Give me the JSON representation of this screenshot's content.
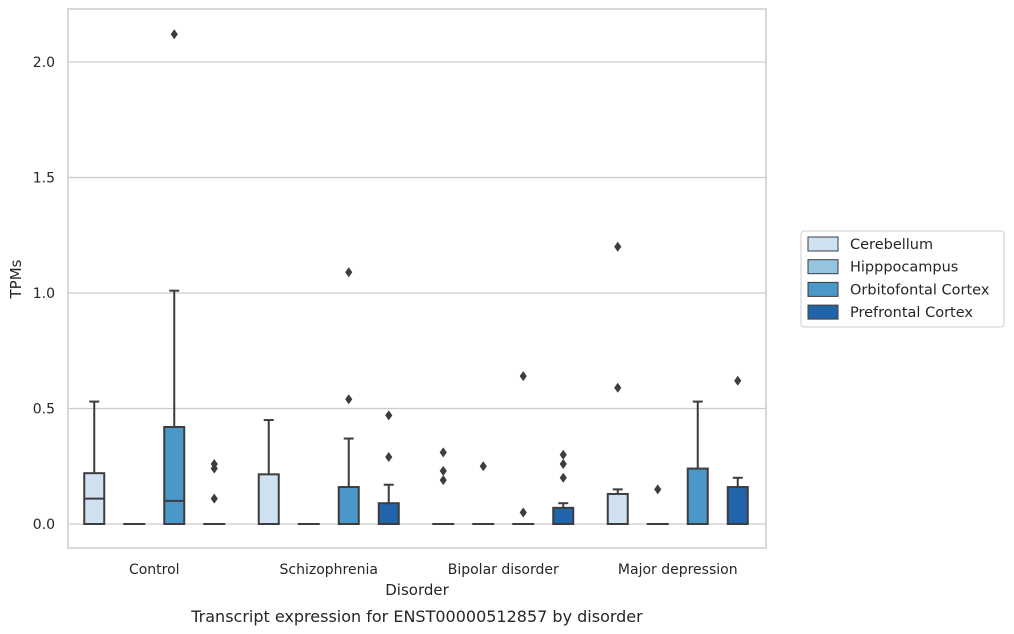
{
  "chart_data": {
    "type": "box",
    "caption": "Transcript expression for ENST00000512857 by disorder",
    "xlabel": "Disorder",
    "ylabel": "TPMs",
    "ylim": [
      -0.1,
      2.23
    ],
    "yticks": [
      0.0,
      0.5,
      1.0,
      1.5,
      2.0
    ],
    "ytick_labels": [
      "0.0",
      "0.5",
      "1.0",
      "1.5",
      "2.0"
    ],
    "grid": "horizontal",
    "legend_position": "right",
    "categories": [
      "Control",
      "Schizophrenia",
      "Bipolar disorder",
      "Major depression"
    ],
    "series": [
      {
        "name": "Cerebellum",
        "color": "#d0e1f2",
        "boxes": [
          {
            "q1": 0.0,
            "median": 0.11,
            "q3": 0.22,
            "whisker_low": 0.0,
            "whisker_high": 0.53,
            "outliers": []
          },
          {
            "q1": 0.0,
            "median": 0.0,
            "q3": 0.215,
            "whisker_low": 0.0,
            "whisker_high": 0.45,
            "outliers": []
          },
          {
            "q1": 0.0,
            "median": 0.0,
            "q3": 0.0,
            "whisker_low": 0.0,
            "whisker_high": 0.0,
            "outliers": [
              0.31,
              0.23,
              0.19
            ]
          },
          {
            "q1": 0.0,
            "median": 0.0,
            "q3": 0.13,
            "whisker_low": 0.0,
            "whisker_high": 0.15,
            "outliers": [
              1.2,
              0.59
            ]
          }
        ]
      },
      {
        "name": "Hipppocampus",
        "color": "#94c4df",
        "boxes": [
          {
            "q1": 0.0,
            "median": 0.0,
            "q3": 0.0,
            "whisker_low": 0.0,
            "whisker_high": 0.0,
            "outliers": []
          },
          {
            "q1": 0.0,
            "median": 0.0,
            "q3": 0.0,
            "whisker_low": 0.0,
            "whisker_high": 0.0,
            "outliers": []
          },
          {
            "q1": 0.0,
            "median": 0.0,
            "q3": 0.0,
            "whisker_low": 0.0,
            "whisker_high": 0.0,
            "outliers": [
              0.25
            ]
          },
          {
            "q1": 0.0,
            "median": 0.0,
            "q3": 0.0,
            "whisker_low": 0.0,
            "whisker_high": 0.0,
            "outliers": [
              0.15
            ]
          }
        ]
      },
      {
        "name": "Orbitofontal Cortex",
        "color": "#4a98c9",
        "boxes": [
          {
            "q1": 0.0,
            "median": 0.1,
            "q3": 0.42,
            "whisker_low": 0.0,
            "whisker_high": 1.01,
            "outliers": [
              2.12
            ]
          },
          {
            "q1": 0.0,
            "median": 0.0,
            "q3": 0.16,
            "whisker_low": 0.0,
            "whisker_high": 0.37,
            "outliers": [
              1.09,
              0.54
            ]
          },
          {
            "q1": 0.0,
            "median": 0.0,
            "q3": 0.0,
            "whisker_low": 0.0,
            "whisker_high": 0.0,
            "outliers": [
              0.64,
              0.05
            ]
          },
          {
            "q1": 0.0,
            "median": 0.0,
            "q3": 0.24,
            "whisker_low": 0.0,
            "whisker_high": 0.53,
            "outliers": []
          }
        ]
      },
      {
        "name": "Prefrontal Cortex",
        "color": "#2264aa",
        "boxes": [
          {
            "q1": 0.0,
            "median": 0.0,
            "q3": 0.0,
            "whisker_low": 0.0,
            "whisker_high": 0.0,
            "outliers": [
              0.26,
              0.24,
              0.11
            ]
          },
          {
            "q1": 0.0,
            "median": 0.0,
            "q3": 0.09,
            "whisker_low": 0.0,
            "whisker_high": 0.17,
            "outliers": [
              0.47,
              0.29
            ]
          },
          {
            "q1": 0.0,
            "median": 0.0,
            "q3": 0.07,
            "whisker_low": 0.0,
            "whisker_high": 0.09,
            "outliers": [
              0.3,
              0.26,
              0.2
            ]
          },
          {
            "q1": 0.0,
            "median": 0.0,
            "q3": 0.16,
            "whisker_low": 0.0,
            "whisker_high": 0.2,
            "outliers": [
              0.62
            ]
          }
        ]
      }
    ]
  }
}
